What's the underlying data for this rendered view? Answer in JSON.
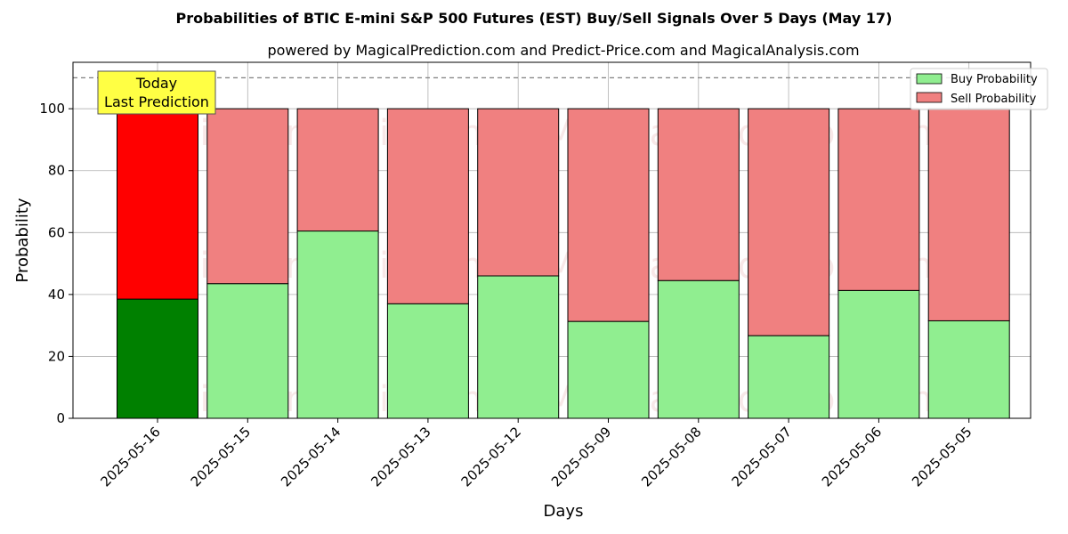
{
  "chart_data": {
    "type": "bar",
    "stacked": true,
    "title": "Probabilities of BTIC E-mini S&P 500 Futures (EST) Buy/Sell Signals Over 5 Days (May 17)",
    "subtitle": "powered by MagicalPrediction.com and Predict-Price.com and MagicalAnalysis.com",
    "xlabel": "Days",
    "ylabel": "Probability",
    "ylim": [
      0,
      115
    ],
    "yticks": [
      0,
      20,
      40,
      60,
      80,
      100
    ],
    "grid": true,
    "legend_position": "top-right",
    "categories": [
      "2025-05-16",
      "2025-05-15",
      "2025-05-14",
      "2025-05-13",
      "2025-05-12",
      "2025-05-09",
      "2025-05-08",
      "2025-05-07",
      "2025-05-06",
      "2025-05-05"
    ],
    "series": [
      {
        "name": "Buy Probability",
        "color": "#90ee90",
        "highlight_color": "#008000",
        "values": [
          38.5,
          43.5,
          60.5,
          37.0,
          46.0,
          31.3,
          44.5,
          26.7,
          41.3,
          31.5
        ]
      },
      {
        "name": "Sell Probability",
        "color": "#f08080",
        "highlight_color": "#ff0000",
        "values": [
          61.5,
          56.5,
          39.5,
          63.0,
          54.0,
          68.7,
          55.5,
          73.3,
          58.7,
          68.5
        ]
      }
    ],
    "highlight_index": 0,
    "reference_line": {
      "y": 110,
      "style": "dashed",
      "color": "#808080"
    },
    "annotation": {
      "lines": [
        "Today",
        "Last Prediction"
      ],
      "background": "#ffff44"
    },
    "watermarks": [
      "MagicalAnalysis.com",
      "MagicalPrediction.com"
    ]
  }
}
